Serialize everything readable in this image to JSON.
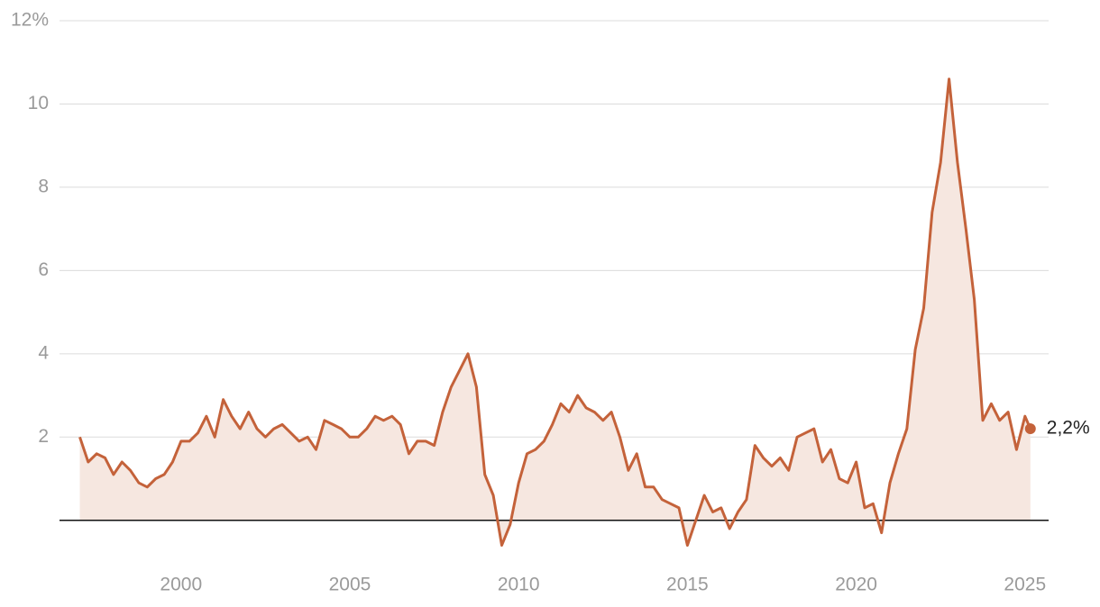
{
  "chart_data": {
    "type": "line",
    "x": [
      1997.0,
      1997.25,
      1997.5,
      1997.75,
      1998.0,
      1998.25,
      1998.5,
      1998.75,
      1999.0,
      1999.25,
      1999.5,
      1999.75,
      2000.0,
      2000.25,
      2000.5,
      2000.75,
      2001.0,
      2001.25,
      2001.5,
      2001.75,
      2002.0,
      2002.25,
      2002.5,
      2002.75,
      2003.0,
      2003.25,
      2003.5,
      2003.75,
      2004.0,
      2004.25,
      2004.5,
      2004.75,
      2005.0,
      2005.25,
      2005.5,
      2005.75,
      2006.0,
      2006.25,
      2006.5,
      2006.75,
      2007.0,
      2007.25,
      2007.5,
      2007.75,
      2008.0,
      2008.25,
      2008.5,
      2008.75,
      2009.0,
      2009.25,
      2009.5,
      2009.75,
      2010.0,
      2010.25,
      2010.5,
      2010.75,
      2011.0,
      2011.25,
      2011.5,
      2011.75,
      2012.0,
      2012.25,
      2012.5,
      2012.75,
      2013.0,
      2013.25,
      2013.5,
      2013.75,
      2014.0,
      2014.25,
      2014.5,
      2014.75,
      2015.0,
      2015.25,
      2015.5,
      2015.75,
      2016.0,
      2016.25,
      2016.5,
      2016.75,
      2017.0,
      2017.25,
      2017.5,
      2017.75,
      2018.0,
      2018.25,
      2018.5,
      2018.75,
      2019.0,
      2019.25,
      2019.5,
      2019.75,
      2020.0,
      2020.25,
      2020.5,
      2020.75,
      2021.0,
      2021.25,
      2021.5,
      2021.75,
      2022.0,
      2022.25,
      2022.5,
      2022.75,
      2023.0,
      2023.25,
      2023.5,
      2023.75,
      2024.0,
      2024.25,
      2024.5,
      2024.75,
      2025.0,
      2025.16
    ],
    "series": [
      {
        "color": "#c4623a",
        "values": [
          2.0,
          1.4,
          1.6,
          1.5,
          1.1,
          1.4,
          1.2,
          0.9,
          0.8,
          1.0,
          1.1,
          1.4,
          1.9,
          1.9,
          2.1,
          2.5,
          2.0,
          2.9,
          2.5,
          2.2,
          2.6,
          2.2,
          2.0,
          2.2,
          2.3,
          2.1,
          1.9,
          2.0,
          1.7,
          2.4,
          2.3,
          2.2,
          2.0,
          2.0,
          2.2,
          2.5,
          2.4,
          2.5,
          2.3,
          1.6,
          1.9,
          1.9,
          1.8,
          2.6,
          3.2,
          3.6,
          4.0,
          3.2,
          1.1,
          0.6,
          -0.6,
          -0.1,
          0.9,
          1.6,
          1.7,
          1.9,
          2.3,
          2.8,
          2.6,
          3.0,
          2.7,
          2.6,
          2.4,
          2.6,
          2.0,
          1.2,
          1.6,
          0.8,
          0.8,
          0.5,
          0.4,
          0.3,
          -0.6,
          0.0,
          0.6,
          0.2,
          0.3,
          -0.2,
          0.2,
          0.5,
          1.8,
          1.5,
          1.3,
          1.5,
          1.2,
          2.0,
          2.1,
          2.2,
          1.4,
          1.7,
          1.0,
          0.9,
          1.4,
          0.3,
          0.4,
          -0.3,
          0.9,
          1.6,
          2.2,
          4.1,
          5.1,
          7.4,
          8.6,
          10.6,
          8.6,
          7.0,
          5.3,
          2.4,
          2.8,
          2.4,
          2.6,
          1.7,
          2.5,
          2.2
        ],
        "value_labels": [
          null,
          null,
          null,
          null,
          null,
          null,
          null,
          null,
          null,
          null,
          null,
          null,
          null,
          null,
          null,
          null,
          null,
          null,
          null,
          null,
          null,
          null,
          null,
          null,
          null,
          null,
          null,
          null,
          null,
          null,
          null,
          null,
          null,
          null,
          null,
          null,
          null,
          null,
          null,
          null,
          null,
          null,
          null,
          null,
          null,
          null,
          null,
          null,
          null,
          null,
          null,
          null,
          null,
          null,
          null,
          null,
          null,
          null,
          null,
          null,
          null,
          null,
          null,
          null,
          null,
          null,
          null,
          null,
          null,
          null,
          null,
          null,
          null,
          null,
          null,
          null,
          null,
          null,
          null,
          null,
          null,
          null,
          null,
          null,
          null,
          null,
          null,
          null,
          null,
          null,
          null,
          null,
          null,
          null,
          null,
          null,
          null,
          null,
          null,
          null,
          null,
          null,
          null,
          null,
          null,
          null,
          null,
          null,
          null,
          null,
          null,
          null,
          null,
          "2,2%"
        ]
      }
    ],
    "area_color": "#f6e7e0",
    "xlim": [
      1996.4,
      2025.7
    ],
    "xticks": [
      2000,
      2005,
      2010,
      2015,
      2020,
      2025
    ],
    "ylim": [
      -1,
      12
    ],
    "yticks": [
      2,
      4,
      6,
      8,
      10,
      {
        "value": 12,
        "label": "12%"
      }
    ],
    "grid": true
  }
}
